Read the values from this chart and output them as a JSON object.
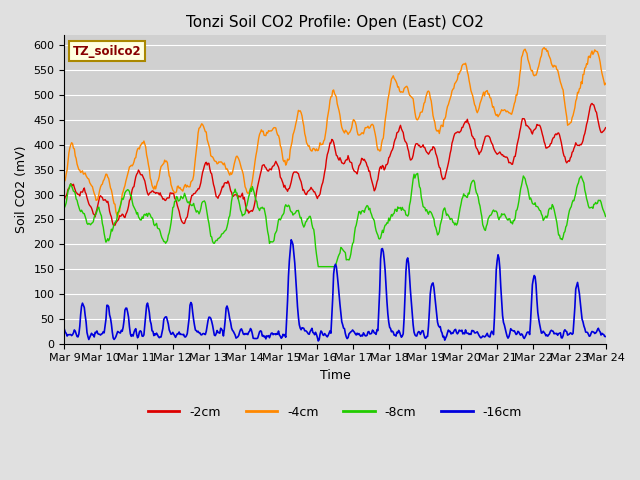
{
  "title": "Tonzi Soil CO2 Profile: Open (East) CO2",
  "ylabel": "Soil CO2 (mV)",
  "xlabel": "Time",
  "legend_label": "TZ_soilco2",
  "ylim": [
    0,
    620
  ],
  "yticks": [
    0,
    50,
    100,
    150,
    200,
    250,
    300,
    350,
    400,
    450,
    500,
    550,
    600
  ],
  "x_tick_labels": [
    "Mar 9",
    "Mar 10",
    "Mar 11",
    "Mar 12",
    "Mar 13",
    "Mar 14",
    "Mar 15",
    "Mar 16",
    "Mar 17",
    "Mar 18",
    "Mar 19",
    "Mar 20",
    "Mar 21",
    "Mar 22",
    "Mar 23",
    "Mar 24"
  ],
  "colors": {
    "-2cm": "#dd0000",
    "-4cm": "#ff8800",
    "-8cm": "#22cc00",
    "-16cm": "#0000dd"
  },
  "legend_entries": [
    "-2cm",
    "-4cm",
    "-8cm",
    "-16cm"
  ],
  "fig_bg": "#e0e0e0",
  "plot_bg": "#d0d0d0",
  "grid_color": "#ffffff",
  "title_fontsize": 11,
  "label_fontsize": 9,
  "tick_fontsize": 8
}
